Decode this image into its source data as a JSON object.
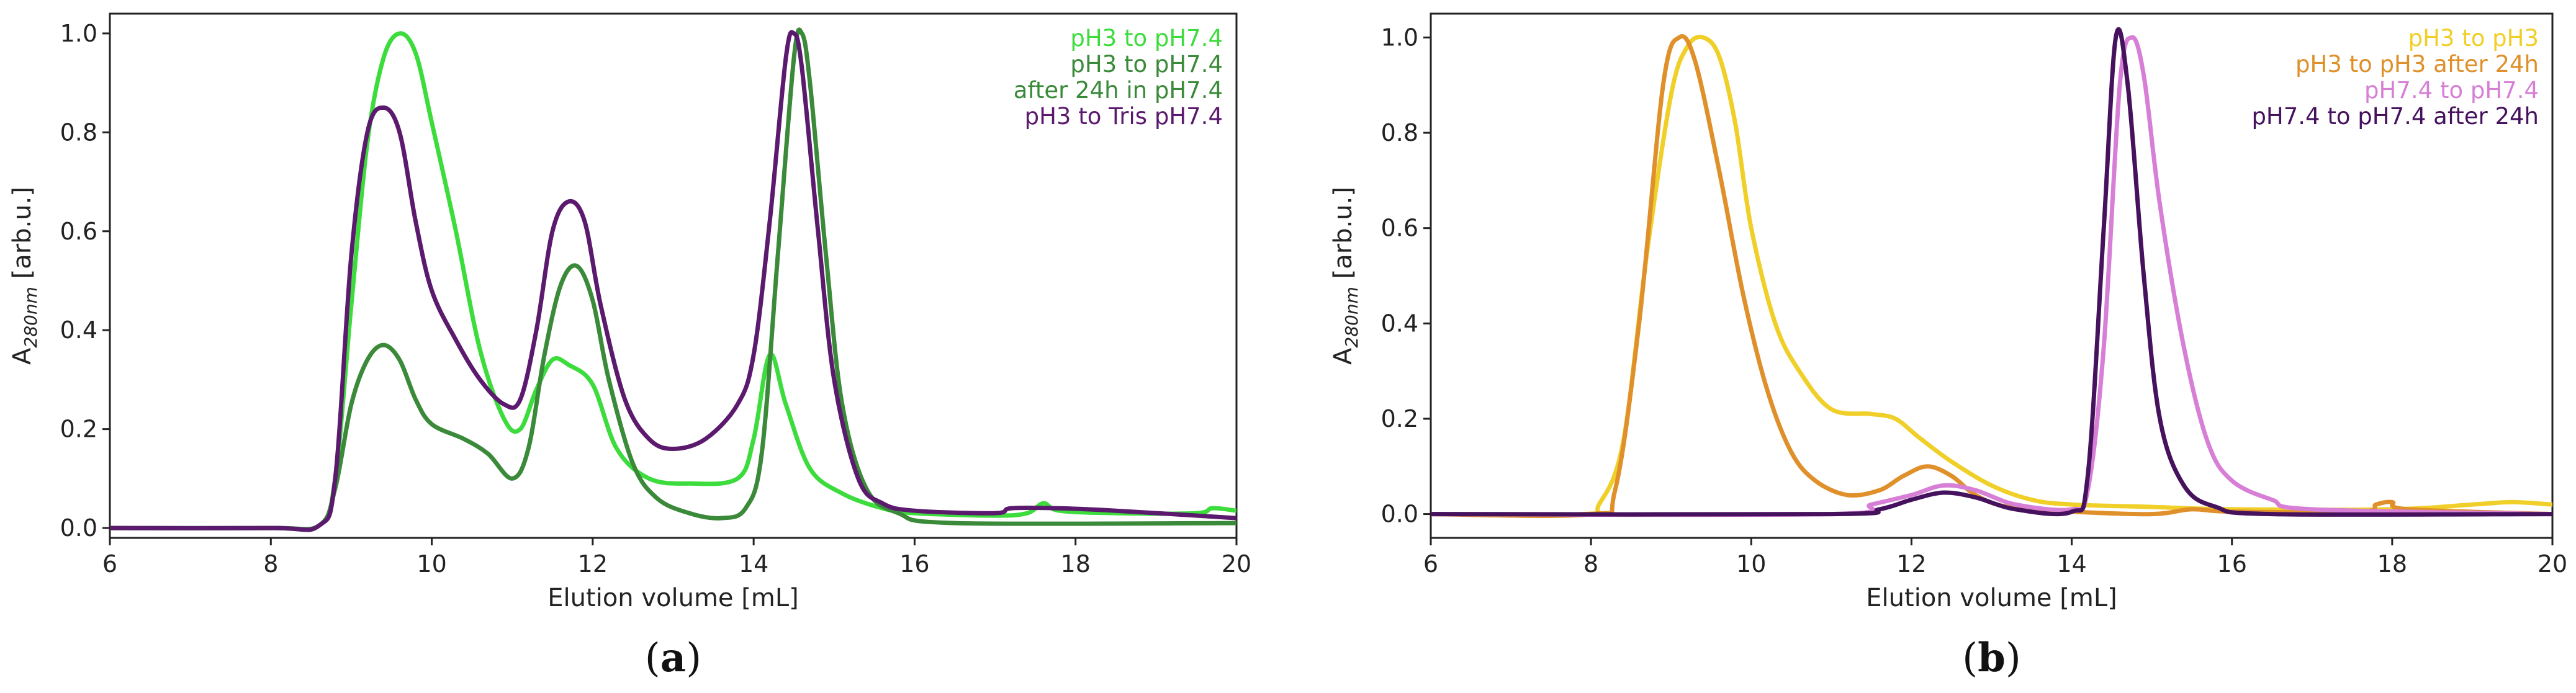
{
  "figure": {
    "panels": [
      {
        "caption": {
          "open": "(",
          "letter": "a",
          "close": ")"
        },
        "xlabel": "Elution volume [mL]",
        "ylabel": {
          "base": "A",
          "sub": "280nm",
          "rest": " [arb.u.]"
        },
        "legend": [
          {
            "lines": [
              "pH3 to pH7.4"
            ],
            "color": "#3ddc3d"
          },
          {
            "lines": [
              "pH3 to pH7.4",
              "after 24h in pH7.4"
            ],
            "color": "#3a8a3a"
          },
          {
            "lines": [
              "pH3 to Tris pH7.4"
            ],
            "color": "#5b1a6e"
          }
        ]
      },
      {
        "caption": {
          "open": "(",
          "letter": "b",
          "close": ")"
        },
        "xlabel": "Elution volume [mL]",
        "ylabel": {
          "base": "A",
          "sub": "280nm",
          "rest": " [arb.u.]"
        },
        "legend": [
          {
            "lines": [
              "pH3 to pH3"
            ],
            "color": "#f0cf28"
          },
          {
            "lines": [
              "pH3 to pH3 after 24h"
            ],
            "color": "#e0902a"
          },
          {
            "lines": [
              "pH7.4 to pH7.4"
            ],
            "color": "#d77fd6"
          },
          {
            "lines": [
              "pH7.4 to pH7.4 after 24h"
            ],
            "color": "#46125e"
          }
        ]
      }
    ]
  },
  "chart_data": [
    {
      "type": "line",
      "title": "",
      "xlabel": "Elution volume [mL]",
      "ylabel": "A280nm [arb.u.]",
      "xlim": [
        6,
        20
      ],
      "ylim": [
        -0.02,
        1.04
      ],
      "xticks": [
        "6",
        "8",
        "10",
        "12",
        "14",
        "16",
        "18",
        "20"
      ],
      "yticks": [
        "0.0",
        "0.2",
        "0.4",
        "0.6",
        "0.8",
        "1.0"
      ],
      "grid": false,
      "legend_position": "top-right",
      "series": [
        {
          "name": "pH3 to pH7.4",
          "color": "#3ddc3d",
          "points": [
            [
              6,
              0.0
            ],
            [
              8,
              0.0
            ],
            [
              8.6,
              0.005
            ],
            [
              8.8,
              0.1
            ],
            [
              9.0,
              0.45
            ],
            [
              9.2,
              0.78
            ],
            [
              9.4,
              0.95
            ],
            [
              9.6,
              1.0
            ],
            [
              9.8,
              0.96
            ],
            [
              10.0,
              0.82
            ],
            [
              10.3,
              0.6
            ],
            [
              10.6,
              0.36
            ],
            [
              10.9,
              0.22
            ],
            [
              11.1,
              0.2
            ],
            [
              11.3,
              0.28
            ],
            [
              11.5,
              0.34
            ],
            [
              11.7,
              0.33
            ],
            [
              12.0,
              0.29
            ],
            [
              12.3,
              0.16
            ],
            [
              12.7,
              0.1
            ],
            [
              13.2,
              0.09
            ],
            [
              13.8,
              0.1
            ],
            [
              14.0,
              0.18
            ],
            [
              14.2,
              0.35
            ],
            [
              14.4,
              0.25
            ],
            [
              14.7,
              0.12
            ],
            [
              15.1,
              0.07
            ],
            [
              15.6,
              0.04
            ],
            [
              16.0,
              0.03
            ],
            [
              17.0,
              0.025
            ],
            [
              17.4,
              0.03
            ],
            [
              17.6,
              0.05
            ],
            [
              17.8,
              0.035
            ],
            [
              18.5,
              0.03
            ],
            [
              19.5,
              0.03
            ],
            [
              19.7,
              0.04
            ],
            [
              20,
              0.035
            ]
          ]
        },
        {
          "name": "pH3 to pH7.4 after 24h in pH7.4",
          "color": "#3a8a3a",
          "points": [
            [
              6,
              0.0
            ],
            [
              8,
              0.0
            ],
            [
              8.6,
              0.005
            ],
            [
              8.8,
              0.08
            ],
            [
              9.0,
              0.25
            ],
            [
              9.2,
              0.34
            ],
            [
              9.4,
              0.37
            ],
            [
              9.6,
              0.34
            ],
            [
              9.8,
              0.26
            ],
            [
              10.0,
              0.21
            ],
            [
              10.4,
              0.18
            ],
            [
              10.7,
              0.15
            ],
            [
              11.0,
              0.1
            ],
            [
              11.2,
              0.16
            ],
            [
              11.4,
              0.35
            ],
            [
              11.6,
              0.49
            ],
            [
              11.8,
              0.53
            ],
            [
              12.0,
              0.46
            ],
            [
              12.2,
              0.3
            ],
            [
              12.5,
              0.13
            ],
            [
              12.8,
              0.06
            ],
            [
              13.2,
              0.03
            ],
            [
              13.6,
              0.02
            ],
            [
              13.9,
              0.04
            ],
            [
              14.1,
              0.15
            ],
            [
              14.3,
              0.55
            ],
            [
              14.5,
              0.95
            ],
            [
              14.6,
              1.0
            ],
            [
              14.7,
              0.9
            ],
            [
              14.9,
              0.55
            ],
            [
              15.1,
              0.25
            ],
            [
              15.4,
              0.08
            ],
            [
              15.8,
              0.03
            ],
            [
              16.5,
              0.01
            ],
            [
              20,
              0.01
            ]
          ]
        },
        {
          "name": "pH3 to Tris pH7.4",
          "color": "#5b1a6e",
          "points": [
            [
              6,
              0.0
            ],
            [
              8,
              0.0
            ],
            [
              8.6,
              0.005
            ],
            [
              8.8,
              0.1
            ],
            [
              9.0,
              0.55
            ],
            [
              9.2,
              0.8
            ],
            [
              9.4,
              0.85
            ],
            [
              9.6,
              0.8
            ],
            [
              9.8,
              0.62
            ],
            [
              10.0,
              0.48
            ],
            [
              10.3,
              0.38
            ],
            [
              10.6,
              0.3
            ],
            [
              10.9,
              0.25
            ],
            [
              11.1,
              0.26
            ],
            [
              11.3,
              0.4
            ],
            [
              11.5,
              0.6
            ],
            [
              11.7,
              0.66
            ],
            [
              11.9,
              0.62
            ],
            [
              12.1,
              0.45
            ],
            [
              12.4,
              0.26
            ],
            [
              12.7,
              0.18
            ],
            [
              13.0,
              0.16
            ],
            [
              13.4,
              0.18
            ],
            [
              13.8,
              0.25
            ],
            [
              14.0,
              0.35
            ],
            [
              14.2,
              0.62
            ],
            [
              14.4,
              0.95
            ],
            [
              14.5,
              1.0
            ],
            [
              14.6,
              0.93
            ],
            [
              14.8,
              0.6
            ],
            [
              15.0,
              0.3
            ],
            [
              15.3,
              0.1
            ],
            [
              15.6,
              0.05
            ],
            [
              16.0,
              0.035
            ],
            [
              17.0,
              0.03
            ],
            [
              17.2,
              0.04
            ],
            [
              17.8,
              0.04
            ],
            [
              18.5,
              0.035
            ],
            [
              20,
              0.02
            ]
          ]
        }
      ]
    },
    {
      "type": "line",
      "title": "",
      "xlabel": "Elution volume [mL]",
      "ylabel": "A280nm [arb.u.]",
      "xlim": [
        6,
        20
      ],
      "ylim": [
        -0.05,
        1.05
      ],
      "xticks": [
        "6",
        "8",
        "10",
        "12",
        "14",
        "16",
        "18",
        "20"
      ],
      "yticks": [
        "0.0",
        "0.2",
        "0.4",
        "0.6",
        "0.8",
        "1.0"
      ],
      "grid": false,
      "legend_position": "top-right",
      "series": [
        {
          "name": "pH3 to pH3",
          "color": "#f0cf28",
          "points": [
            [
              6,
              0.0
            ],
            [
              7.9,
              0.0
            ],
            [
              8.1,
              0.02
            ],
            [
              8.4,
              0.15
            ],
            [
              8.7,
              0.55
            ],
            [
              9.0,
              0.88
            ],
            [
              9.2,
              0.98
            ],
            [
              9.4,
              1.0
            ],
            [
              9.6,
              0.96
            ],
            [
              9.8,
              0.82
            ],
            [
              10.0,
              0.6
            ],
            [
              10.3,
              0.4
            ],
            [
              10.6,
              0.3
            ],
            [
              11.0,
              0.22
            ],
            [
              11.5,
              0.21
            ],
            [
              11.8,
              0.2
            ],
            [
              12.1,
              0.16
            ],
            [
              12.5,
              0.11
            ],
            [
              13.0,
              0.06
            ],
            [
              13.5,
              0.03
            ],
            [
              14.0,
              0.02
            ],
            [
              15.0,
              0.015
            ],
            [
              16.0,
              0.01
            ],
            [
              18.0,
              0.01
            ],
            [
              19.0,
              0.02
            ],
            [
              19.5,
              0.025
            ],
            [
              20,
              0.02
            ]
          ]
        },
        {
          "name": "pH3 to pH3 after 24h",
          "color": "#e0902a",
          "points": [
            [
              6,
              0.0
            ],
            [
              8.0,
              0.0
            ],
            [
              8.3,
              0.05
            ],
            [
              8.6,
              0.4
            ],
            [
              8.9,
              0.9
            ],
            [
              9.1,
              1.0
            ],
            [
              9.3,
              0.95
            ],
            [
              9.6,
              0.72
            ],
            [
              9.9,
              0.46
            ],
            [
              10.2,
              0.26
            ],
            [
              10.5,
              0.13
            ],
            [
              10.8,
              0.07
            ],
            [
              11.2,
              0.04
            ],
            [
              11.6,
              0.05
            ],
            [
              11.9,
              0.08
            ],
            [
              12.2,
              0.1
            ],
            [
              12.5,
              0.08
            ],
            [
              12.8,
              0.04
            ],
            [
              13.2,
              0.015
            ],
            [
              14.0,
              0.005
            ],
            [
              15.0,
              0.0
            ],
            [
              15.5,
              0.01
            ],
            [
              16.0,
              0.005
            ],
            [
              17.6,
              0.005
            ],
            [
              17.8,
              0.02
            ],
            [
              18.0,
              0.025
            ],
            [
              18.2,
              0.01
            ],
            [
              20,
              0.0
            ]
          ]
        },
        {
          "name": "pH7.4 to pH7.4",
          "color": "#d77fd6",
          "points": [
            [
              6,
              0.0
            ],
            [
              11.0,
              0.0
            ],
            [
              11.5,
              0.02
            ],
            [
              12.0,
              0.04
            ],
            [
              12.4,
              0.06
            ],
            [
              12.8,
              0.05
            ],
            [
              13.3,
              0.02
            ],
            [
              14.0,
              0.01
            ],
            [
              14.2,
              0.05
            ],
            [
              14.4,
              0.35
            ],
            [
              14.6,
              0.9
            ],
            [
              14.75,
              1.0
            ],
            [
              14.9,
              0.92
            ],
            [
              15.1,
              0.65
            ],
            [
              15.4,
              0.35
            ],
            [
              15.7,
              0.15
            ],
            [
              16.0,
              0.07
            ],
            [
              16.5,
              0.03
            ],
            [
              17.0,
              0.01
            ],
            [
              20,
              0.0
            ]
          ]
        },
        {
          "name": "pH7.4 to pH7.4 after 24h",
          "color": "#46125e",
          "points": [
            [
              6,
              0.0
            ],
            [
              11.0,
              0.0
            ],
            [
              11.6,
              0.01
            ],
            [
              12.0,
              0.03
            ],
            [
              12.4,
              0.045
            ],
            [
              12.8,
              0.035
            ],
            [
              13.3,
              0.01
            ],
            [
              14.0,
              0.005
            ],
            [
              14.2,
              0.08
            ],
            [
              14.4,
              0.6
            ],
            [
              14.55,
              1.0
            ],
            [
              14.7,
              0.9
            ],
            [
              14.9,
              0.5
            ],
            [
              15.1,
              0.2
            ],
            [
              15.4,
              0.06
            ],
            [
              15.8,
              0.015
            ],
            [
              16.5,
              0.0
            ],
            [
              20,
              0.0
            ]
          ]
        }
      ]
    }
  ]
}
